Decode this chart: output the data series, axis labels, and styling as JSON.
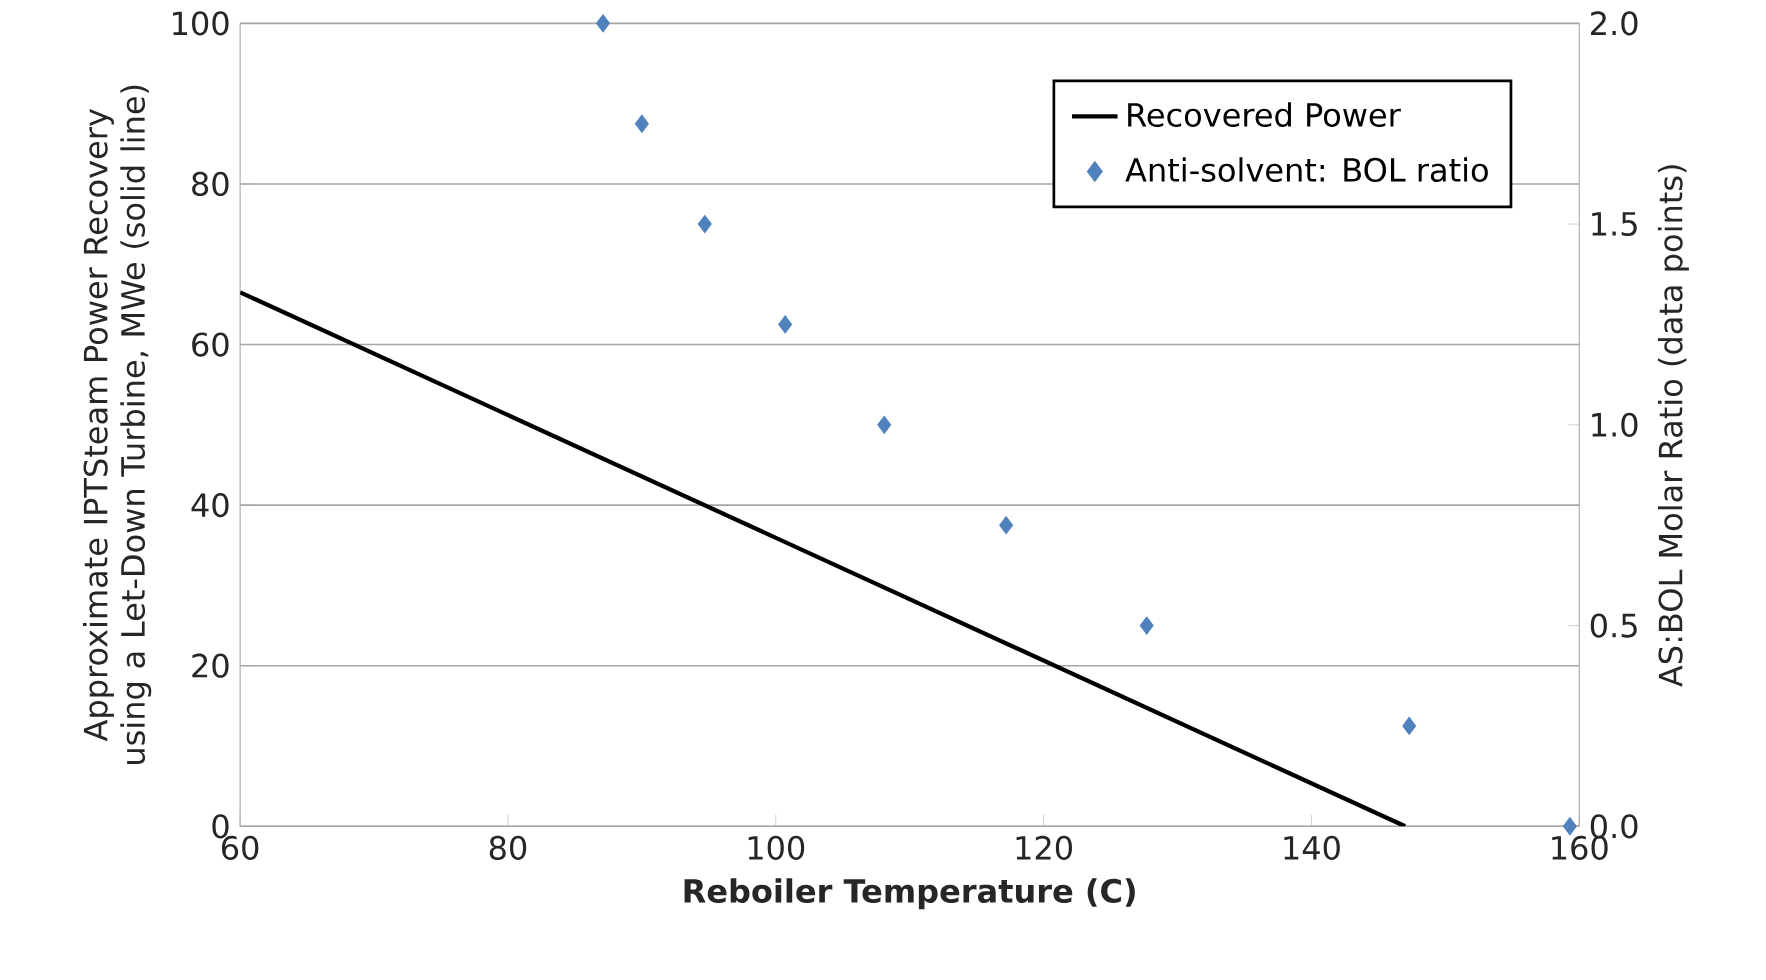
{
  "chart_data": {
    "type": "scatter",
    "xlabel": "Reboiler Temperature (C)",
    "ylabel": "Approximate IPTSteam Power Recovery using a Let-Down  Turbine, MWe (solid line)",
    "y2label": "AS:BOL Molar Ratio (data points)",
    "xlim": [
      60,
      160
    ],
    "xticks": [
      60,
      80,
      100,
      120,
      140,
      160
    ],
    "ylim": [
      0,
      100
    ],
    "yticks": [
      0,
      20,
      40,
      60,
      80,
      100
    ],
    "y2lim": [
      0,
      2
    ],
    "y2ticks": [
      {
        "value": 0,
        "label": "0.0"
      },
      {
        "value": 0.5,
        "label": "0.5"
      },
      {
        "value": 1,
        "label": "1.0"
      },
      {
        "value": 1.5,
        "label": "1.5"
      },
      {
        "value": 2,
        "label": "2.0"
      }
    ],
    "grid": "y",
    "legend": "top right",
    "series": [
      {
        "name": "Recovered Power",
        "type": "line",
        "color": "#000000",
        "marker": "none",
        "line_style": "solid",
        "x": [
          60,
          147
        ],
        "values": [
          66.5,
          0
        ]
      },
      {
        "name": "Anti-solvent: BOL ratio",
        "axis": "y2",
        "color": "#4f81bd",
        "marker": "diamond",
        "x": [
          87.1,
          90.0,
          94.7,
          100.7,
          108.1,
          117.2,
          127.7,
          147.3,
          159.3
        ],
        "values": [
          2.0,
          1.75,
          1.5,
          1.25,
          1.0,
          0.75,
          0.5,
          0.25,
          0.0
        ]
      }
    ]
  }
}
